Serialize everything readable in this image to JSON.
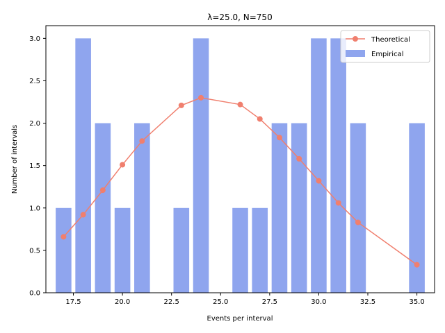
{
  "chart_data": {
    "type": "bar",
    "title": "λ=25.0, N=750",
    "xlabel": "Events per interval",
    "ylabel": "Number of intervals",
    "xlim": [
      16.1,
      35.9
    ],
    "ylim": [
      0,
      3.15
    ],
    "grid": false,
    "legend_position": "top-right",
    "x_ticks": [
      17.5,
      20.0,
      22.5,
      25.0,
      27.5,
      30.0,
      32.5,
      35.0
    ],
    "x_tick_labels": [
      "17.5",
      "20.0",
      "22.5",
      "25.0",
      "27.5",
      "30.0",
      "32.5",
      "35.0"
    ],
    "y_ticks": [
      0.0,
      0.5,
      1.0,
      1.5,
      2.0,
      2.5,
      3.0
    ],
    "y_tick_labels": [
      "0.0",
      "0.5",
      "1.0",
      "1.5",
      "2.0",
      "2.5",
      "3.0"
    ],
    "bar_width": 0.8,
    "series": [
      {
        "name": "Empirical",
        "kind": "bar",
        "color": "#8fa5ee",
        "x": [
          17,
          18,
          19,
          20,
          21,
          23,
          24,
          26,
          27,
          28,
          29,
          30,
          31,
          32,
          35
        ],
        "values": [
          1,
          3,
          2,
          1,
          2,
          1,
          3,
          1,
          1,
          2,
          2,
          3,
          3,
          2,
          2
        ]
      },
      {
        "name": "Theoretical",
        "kind": "line",
        "color": "#f07f6e",
        "x": [
          17,
          18,
          19,
          20,
          21,
          23,
          24,
          26,
          27,
          28,
          29,
          30,
          31,
          32,
          35
        ],
        "values": [
          0.66,
          0.92,
          1.21,
          1.51,
          1.79,
          2.21,
          2.3,
          2.22,
          2.05,
          1.83,
          1.58,
          1.32,
          1.06,
          0.83,
          0.33
        ]
      }
    ]
  }
}
